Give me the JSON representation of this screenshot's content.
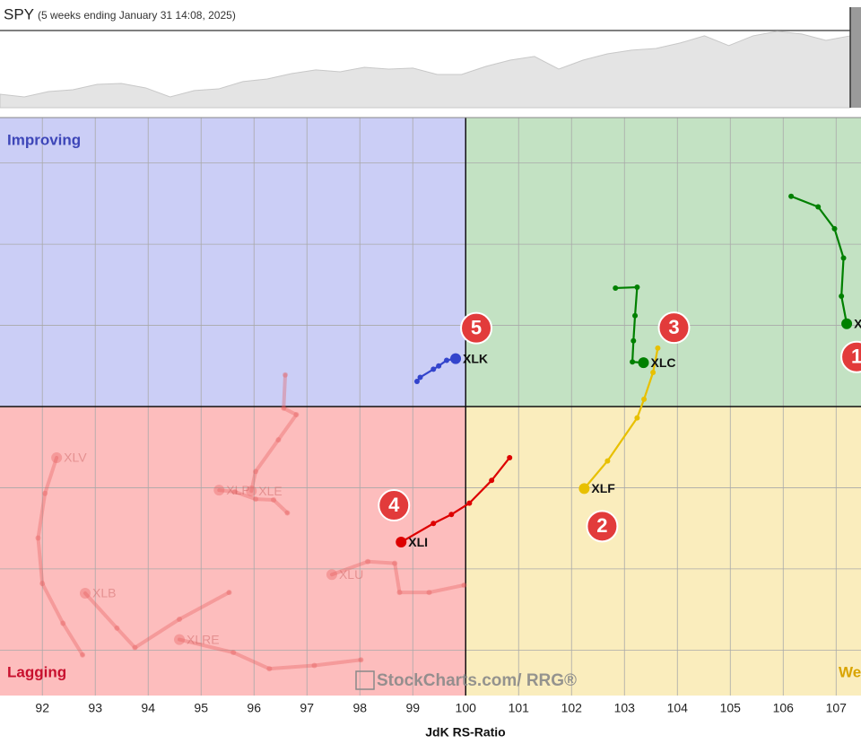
{
  "chart_data": {
    "type": "rrg",
    "benchmark": {
      "name": "SPY",
      "subtitle": "(5 weeks ending January 31 14:08, 2025)",
      "color": "#e4e4e4",
      "values": [
        569.6,
        567.7,
        571.5,
        572.8,
        576.6,
        577.3,
        574.1,
        567.7,
        572.2,
        573.4,
        578.6,
        580.5,
        584.3,
        586.9,
        585.6,
        588.8,
        587.5,
        588.2,
        583.7,
        583.7,
        589.4,
        593.9,
        596.5,
        587.5,
        593.9,
        598.4,
        601.0,
        602.2,
        606.1,
        611.2,
        604.2,
        611.2,
        614.4,
        612.5,
        608.0,
        611.2
      ],
      "ylim": [
        560,
        615
      ]
    },
    "xlabel": "JdK RS-Ratio",
    "watermark": "StockCharts.com/ RRG®",
    "quadrants": {
      "improving": "Improving",
      "lagging": "Lagging",
      "weakening": "Weakening"
    },
    "center": [
      100,
      100
    ],
    "xlim": [
      91.2,
      107.47
    ],
    "ylim": [
      96.44,
      103.56
    ],
    "xticks": [
      92,
      93,
      94,
      95,
      96,
      97,
      98,
      99,
      100,
      101,
      102,
      103,
      104,
      105,
      106,
      107
    ],
    "yticks": [
      97,
      98,
      99,
      100,
      101,
      102,
      103
    ],
    "grid": true,
    "series": [
      {
        "name": "XLY",
        "color": "#008000",
        "badge": "1",
        "x": [
          106.15,
          106.66,
          106.97,
          107.14,
          107.1,
          107.2
        ],
        "y": [
          102.59,
          102.46,
          102.19,
          101.83,
          101.36,
          101.02
        ]
      },
      {
        "name": "XLF",
        "color": "#e8c000",
        "badge": "2",
        "x": [
          103.63,
          103.54,
          103.37,
          103.24,
          102.68,
          102.24
        ],
        "y": [
          100.72,
          100.42,
          100.09,
          99.86,
          99.33,
          98.99
        ]
      },
      {
        "name": "XLC",
        "color": "#008000",
        "badge": "3",
        "x": [
          102.83,
          103.24,
          103.2,
          103.17,
          103.15,
          103.36
        ],
        "y": [
          101.46,
          101.47,
          101.12,
          100.81,
          100.55,
          100.54
        ]
      },
      {
        "name": "XLI",
        "color": "#dd0000",
        "badge": "4",
        "x": [
          100.83,
          100.49,
          100.07,
          99.73,
          99.39,
          98.78
        ],
        "y": [
          99.37,
          99.09,
          98.81,
          98.67,
          98.56,
          98.33
        ]
      },
      {
        "name": "XLK",
        "color": "#3344cc",
        "badge": "5",
        "x": [
          99.08,
          99.14,
          99.39,
          99.49,
          99.64,
          99.81
        ],
        "y": [
          100.31,
          100.36,
          100.46,
          100.5,
          100.57,
          100.59
        ]
      },
      {
        "name": "XLV",
        "color": "rgba(230,90,90,0.35)",
        "x": [
          92.76,
          92.39,
          92.0,
          91.92,
          92.05,
          92.27
        ],
        "y": [
          96.94,
          97.33,
          97.82,
          98.38,
          98.93,
          99.37
        ]
      },
      {
        "name": "XLB",
        "color": "rgba(230,90,90,0.35)",
        "x": [
          95.53,
          94.59,
          93.75,
          93.41,
          92.81
        ],
        "y": [
          97.71,
          97.38,
          97.03,
          97.27,
          97.7
        ]
      },
      {
        "name": "XLRE",
        "color": "rgba(230,90,90,0.35)",
        "x": [
          98.02,
          97.14,
          96.29,
          95.61,
          94.59
        ],
        "y": [
          96.88,
          96.81,
          96.77,
          96.97,
          97.13
        ]
      },
      {
        "name": "XLU",
        "color": "rgba(230,90,90,0.35)",
        "x": [
          99.97,
          99.31,
          98.75,
          98.66,
          98.15,
          97.47
        ],
        "y": [
          97.8,
          97.71,
          97.71,
          98.07,
          98.09,
          97.93
        ]
      },
      {
        "name": "XLE",
        "color": "rgba(230,90,90,0.35)",
        "x": [
          96.59,
          96.56,
          96.8,
          96.46,
          96.03,
          95.95
        ],
        "y": [
          100.39,
          99.98,
          99.9,
          99.59,
          99.2,
          98.96
        ]
      },
      {
        "name": "XLP",
        "color": "rgba(230,90,90,0.35)",
        "x": [
          96.63,
          96.37,
          96.03,
          95.64,
          95.34
        ],
        "y": [
          98.69,
          98.85,
          98.86,
          98.95,
          98.97
        ]
      }
    ]
  }
}
